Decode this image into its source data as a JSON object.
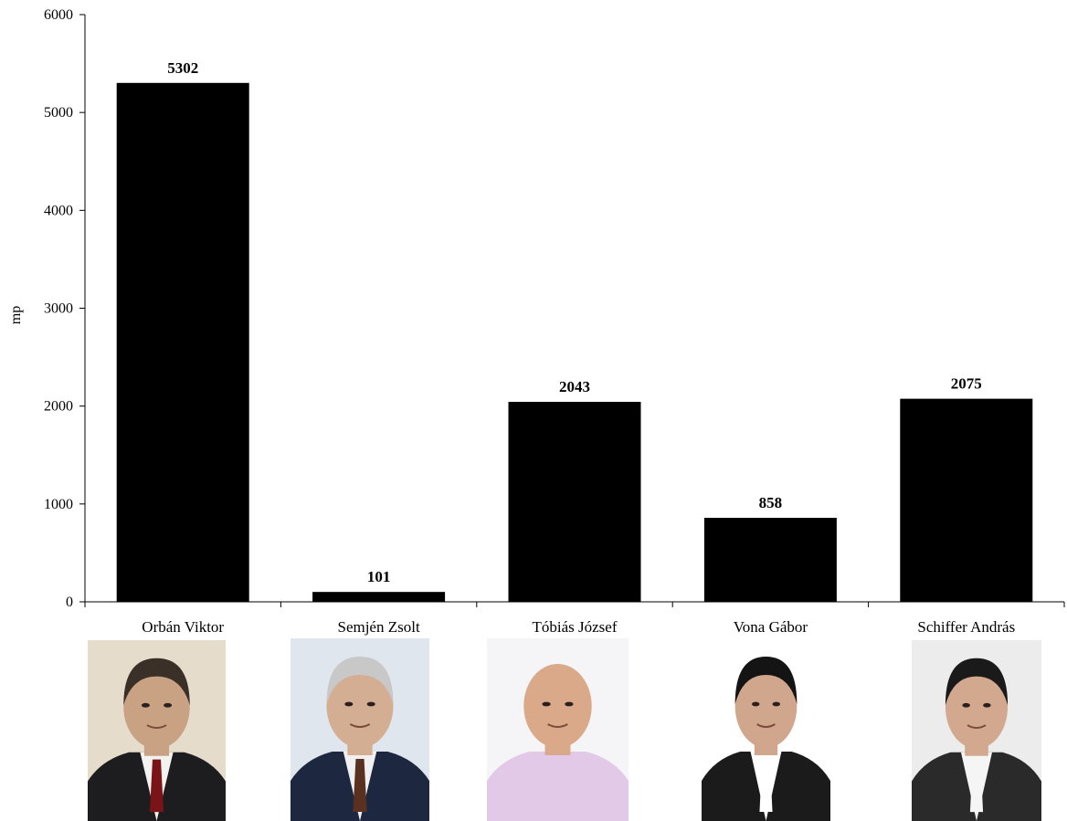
{
  "chart_data": {
    "type": "bar",
    "title": "",
    "xlabel": "",
    "ylabel": "mp",
    "ylim": [
      0,
      6000
    ],
    "yticks": [
      0,
      1000,
      2000,
      3000,
      4000,
      5000,
      6000
    ],
    "categories": [
      "Orbán Viktor",
      "Semjén Zsolt",
      "Tóbiás József",
      "Vona Gábor",
      "Schiffer András"
    ],
    "values": [
      5302,
      101,
      2043,
      858,
      2075
    ],
    "data_labels": [
      "5302",
      "101",
      "2043",
      "858",
      "2075"
    ],
    "bar_color": "#000000",
    "grid": false,
    "legend": "none"
  },
  "photos": [
    {
      "name": "Orbán Viktor",
      "background": "#e6dccb",
      "skin": "#c9a183",
      "hair": "#3a3028",
      "suit": "#1d1d20",
      "shirt": "#f2f2f0",
      "tie": "#7a1418"
    },
    {
      "name": "Semjén Zsolt",
      "background": "#dfe6ee",
      "skin": "#d4ae92",
      "hair": "#c8c8c8",
      "suit": "#1e2740",
      "shirt": "#f0f0f0",
      "tie": "#5a3020"
    },
    {
      "name": "Tóbiás József",
      "background": "#f5f5f7",
      "skin": "#d9a98a",
      "hair": "#d9a98a",
      "suit": "#e3c9e8",
      "shirt": "#e3c9e8",
      "tie": "#e3c9e8"
    },
    {
      "name": "Vona Gábor",
      "background": "#ffffff",
      "skin": "#d0a68c",
      "hair": "#141414",
      "suit": "#1b1b1b",
      "shirt": "#ffffff",
      "tie": "#ffffff"
    },
    {
      "name": "Schiffer András",
      "background": "#ececec",
      "skin": "#d2a88e",
      "hair": "#1a1a1a",
      "suit": "#2a2a2a",
      "shirt": "#f5f5f5",
      "tie": "#f5f5f5"
    }
  ]
}
